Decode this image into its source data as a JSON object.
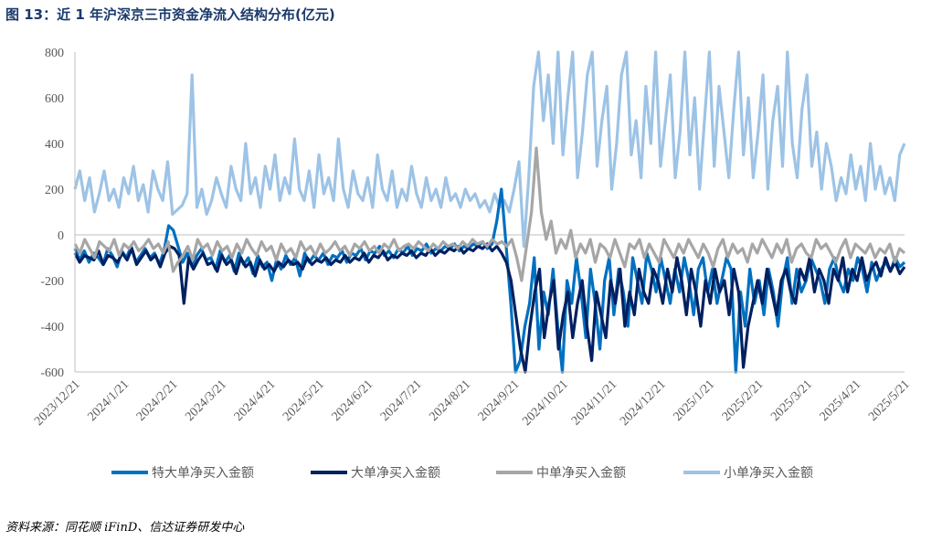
{
  "title": "图 13：近 1 年沪深京三市资金净流入结构分布(亿元)",
  "source": "资料来源：同花顺 iFinD、信达证券研发中心",
  "chart_data": {
    "type": "line",
    "ylim": [
      -600,
      800
    ],
    "yticks": [
      -600,
      -400,
      -200,
      0,
      200,
      400,
      600,
      800
    ],
    "xtick_labels": [
      "2023/12/21",
      "2024/1/21",
      "2024/2/21",
      "2024/3/21",
      "2024/4/21",
      "2024/5/21",
      "2024/6/21",
      "2024/7/21",
      "2024/8/21",
      "2024/9/21",
      "2024/10/21",
      "2024/11/21",
      "2024/12/21",
      "2025/1/21",
      "2025/2/21",
      "2025/3/21",
      "2025/4/21",
      "2025/5/21"
    ],
    "legend_position": "bottom",
    "series": [
      {
        "name": "特大单净买入金额",
        "color": "#0070C0",
        "values": [
          -60,
          -110,
          -70,
          -120,
          -80,
          -100,
          -130,
          -60,
          -90,
          -140,
          -70,
          -100,
          -50,
          -120,
          -90,
          -60,
          -100,
          -80,
          -130,
          -70,
          40,
          20,
          -50,
          -120,
          -80,
          -140,
          -90,
          -60,
          -110,
          -100,
          -150,
          -70,
          -120,
          -90,
          -160,
          -80,
          -130,
          -100,
          -170,
          -90,
          -140,
          -120,
          -200,
          -110,
          -150,
          -90,
          -130,
          -100,
          -180,
          -80,
          -120,
          -90,
          -110,
          -80,
          -130,
          -90,
          -100,
          -70,
          -120,
          -80,
          -90,
          -60,
          -110,
          -70,
          -80,
          -50,
          -90,
          -70,
          -100,
          -60,
          -80,
          -50,
          -90,
          -60,
          -70,
          -40,
          -80,
          -60,
          -70,
          -50,
          -60,
          -40,
          -70,
          -50,
          -60,
          -40,
          -50,
          -30,
          -60,
          -40,
          60,
          200,
          -50,
          -300,
          -600,
          -550,
          -400,
          -300,
          -100,
          -500,
          -250,
          -350,
          -150,
          -400,
          -600,
          -200,
          -300,
          -100,
          -250,
          -450,
          -150,
          -300,
          -500,
          -200,
          -100,
          -350,
          -150,
          -250,
          -400,
          -100,
          -200,
          -300,
          -80,
          -150,
          -250,
          -100,
          -200,
          -300,
          -150,
          -250,
          -100,
          -200,
          -350,
          -150,
          -100,
          -250,
          -150,
          -300,
          -200,
          -100,
          -150,
          -600,
          -250,
          -400,
          -150,
          -300,
          -200,
          -350,
          -150,
          -250,
          -400,
          -200,
          -100,
          -300,
          -150,
          -250,
          -200,
          -100,
          -150,
          -200,
          -300,
          -150,
          -100,
          -200,
          -250,
          -150,
          -200,
          -100,
          -150,
          -250,
          -120,
          -200,
          -150,
          -120,
          -160,
          -100,
          -140,
          -120
        ]
      },
      {
        "name": "大单净买入金额",
        "color": "#002060",
        "values": [
          -80,
          -120,
          -90,
          -100,
          -110,
          -70,
          -130,
          -90,
          -100,
          -120,
          -80,
          -110,
          -60,
          -130,
          -100,
          -70,
          -110,
          -90,
          -140,
          -80,
          -50,
          -60,
          -90,
          -300,
          -100,
          -150,
          -110,
          -80,
          -130,
          -120,
          -160,
          -90,
          -130,
          -110,
          -170,
          -100,
          -140,
          -120,
          -180,
          -110,
          -150,
          -130,
          -160,
          -120,
          -140,
          -110,
          -130,
          -120,
          -150,
          -100,
          -130,
          -110,
          -120,
          -100,
          -130,
          -110,
          -120,
          -90,
          -120,
          -100,
          -110,
          -80,
          -120,
          -90,
          -100,
          -70,
          -110,
          -90,
          -100,
          -80,
          -90,
          -70,
          -100,
          -80,
          -90,
          -60,
          -90,
          -70,
          -80,
          -60,
          -70,
          -50,
          -80,
          -60,
          -70,
          -50,
          -60,
          -40,
          -70,
          -50,
          -80,
          -120,
          -200,
          -350,
          -500,
          -620,
          -400,
          -250,
          -150,
          -450,
          -300,
          -200,
          -500,
          -350,
          -250,
          -450,
          -300,
          -200,
          -400,
          -550,
          -250,
          -350,
          -450,
          -200,
          -300,
          -150,
          -400,
          -250,
          -350,
          -150,
          -250,
          -300,
          -150,
          -200,
          -300,
          -150,
          -250,
          -100,
          -200,
          -350,
          -150,
          -250,
          -400,
          -200,
          -300,
          -150,
          -250,
          -200,
          -350,
          -150,
          -250,
          -580,
          -400,
          -300,
          -200,
          -300,
          -150,
          -250,
          -350,
          -200,
          -150,
          -250,
          -300,
          -150,
          -200,
          -100,
          -250,
          -150,
          -200,
          -300,
          -150,
          -200,
          -100,
          -250,
          -150,
          -200,
          -100,
          -200,
          -150,
          -120,
          -180,
          -100,
          -160,
          -120,
          -170,
          -140
        ]
      },
      {
        "name": "中单净买入金额",
        "color": "#A6A6A6",
        "values": [
          -40,
          -80,
          -20,
          -60,
          -100,
          -30,
          -50,
          -70,
          -20,
          -90,
          -40,
          -60,
          -30,
          -70,
          -50,
          -20,
          -60,
          -40,
          -80,
          -30,
          -160,
          -120,
          -90,
          -50,
          -110,
          -20,
          -60,
          -40,
          -90,
          -30,
          -70,
          -50,
          -100,
          -40,
          -80,
          -20,
          -60,
          -90,
          -30,
          -70,
          -50,
          -110,
          -40,
          -80,
          -60,
          -100,
          -30,
          -70,
          -50,
          -90,
          -40,
          -80,
          -60,
          -30,
          -70,
          -50,
          -90,
          -40,
          -60,
          -30,
          -70,
          -50,
          -80,
          -40,
          -60,
          -20,
          -70,
          -50,
          -40,
          -60,
          -30,
          -50,
          -70,
          -40,
          -60,
          -30,
          -50,
          -40,
          -60,
          -30,
          -50,
          -20,
          -40,
          -30,
          -50,
          -20,
          -40,
          -30,
          -50,
          -20,
          -100,
          -200,
          -50,
          100,
          380,
          100,
          -20,
          60,
          -80,
          -20,
          -60,
          20,
          -100,
          -40,
          -80,
          -20,
          -120,
          -40,
          -60,
          -100,
          -20,
          -80,
          -140,
          -40,
          -60,
          -20,
          -100,
          -40,
          -80,
          -120,
          -20,
          -60,
          -100,
          -40,
          -80,
          -20,
          -60,
          -100,
          -40,
          -80,
          -140,
          -60,
          -20,
          -100,
          -40,
          -80,
          -60,
          -120,
          -40,
          -80,
          -20,
          -60,
          -100,
          -40,
          -80,
          -20,
          -120,
          -60,
          -40,
          -80,
          -100,
          -20,
          -60,
          -40,
          -80,
          -120,
          -60,
          -20,
          -100,
          -40,
          -60,
          -80,
          -40,
          -100,
          -60,
          -80,
          -40,
          -120,
          -60,
          -80
        ]
      },
      {
        "name": "小单净买入金额",
        "color": "#9DC3E6",
        "values": [
          200,
          280,
          150,
          250,
          100,
          180,
          280,
          150,
          200,
          120,
          250,
          180,
          300,
          150,
          220,
          100,
          280,
          200,
          150,
          320,
          90,
          110,
          130,
          180,
          700,
          120,
          200,
          90,
          150,
          250,
          180,
          120,
          300,
          200,
          150,
          400,
          180,
          250,
          120,
          300,
          200,
          350,
          150,
          250,
          180,
          420,
          200,
          150,
          280,
          120,
          350,
          180,
          250,
          150,
          420,
          200,
          120,
          280,
          180,
          150,
          250,
          120,
          350,
          200,
          150,
          280,
          120,
          200,
          150,
          300,
          180,
          120,
          250,
          150,
          200,
          120,
          250,
          150,
          180,
          120,
          200,
          150,
          180,
          120,
          150,
          100,
          180,
          120,
          150,
          100,
          200,
          320,
          -50,
          250,
          650,
          800,
          500,
          700,
          400,
          800,
          350,
          600,
          800,
          250,
          450,
          700,
          800,
          300,
          500,
          650,
          200,
          400,
          700,
          800,
          350,
          500,
          250,
          650,
          400,
          800,
          300,
          500,
          700,
          250,
          450,
          800,
          350,
          600,
          200,
          500,
          800,
          300,
          650,
          450,
          250,
          550,
          800,
          350,
          600,
          250,
          450,
          700,
          200,
          500,
          650,
          300,
          800,
          400,
          250,
          550,
          700,
          300,
          450,
          200,
          400,
          300,
          150,
          250,
          180,
          350,
          200,
          300,
          150,
          400,
          200,
          300,
          180,
          250,
          150,
          350,
          400
        ]
      }
    ]
  }
}
